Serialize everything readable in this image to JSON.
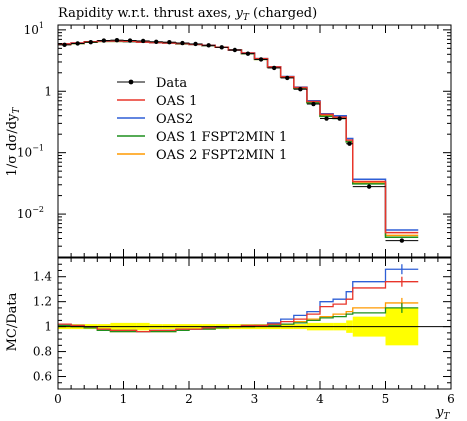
{
  "title": {
    "main": "Rapidity w.r.t. thrust axes, ",
    "var": "y",
    "sub": "T",
    "suffix": " (charged)"
  },
  "ylabel_main": "1/σ dσ/dy",
  "ylabel_main_sub": "T",
  "ylabel_ratio": "MC/Data",
  "xlabel": {
    "var": "y",
    "sub": "T"
  },
  "colors": {
    "data": "#000000",
    "oas1": "#e8352a",
    "oas2": "#2e5fd6",
    "oas1f": "#1f8f1f",
    "oas2f": "#ff9a00",
    "band": "#ffff00"
  },
  "legend": [
    {
      "key": "data",
      "label": "Data"
    },
    {
      "key": "oas1",
      "label": "OAS 1"
    },
    {
      "key": "oas2",
      "label": "OAS2"
    },
    {
      "key": "oas1f",
      "label": "OAS 1 FSPT2MIN 1"
    },
    {
      "key": "oas2f",
      "label": "OAS 2 FSPT2MIN 1"
    }
  ],
  "chart_data": {
    "type": "line",
    "xlim": [
      0,
      6
    ],
    "ylim_main": [
      0.002,
      12
    ],
    "yscale_main": "log",
    "ylim_ratio": [
      0.5,
      1.55
    ],
    "x_ticks": [
      "0",
      "1",
      "2",
      "3",
      "4",
      "5",
      "6"
    ],
    "y_ticks_main": [
      {
        "v": 10,
        "m": "10",
        "e": "1"
      },
      {
        "v": 1,
        "m": "1",
        "e": ""
      },
      {
        "v": 0.1,
        "m": "10",
        "e": "−1"
      },
      {
        "v": 0.01,
        "m": "10",
        "e": "−2"
      }
    ],
    "y_ticks_ratio": [
      "0.6",
      "0.8",
      "1",
      "1.2",
      "1.4"
    ],
    "bin_edges": [
      0,
      0.2,
      0.4,
      0.6,
      0.8,
      1.0,
      1.2,
      1.4,
      1.6,
      1.8,
      2.0,
      2.2,
      2.4,
      2.6,
      2.8,
      3.0,
      3.2,
      3.4,
      3.6,
      3.8,
      4.0,
      4.2,
      4.4,
      4.5,
      5.0,
      5.5,
      6.0
    ],
    "data": [
      5.7,
      6.0,
      6.3,
      6.7,
      6.8,
      6.7,
      6.6,
      6.4,
      6.3,
      6.1,
      5.9,
      5.6,
      5.2,
      4.7,
      4.1,
      3.3,
      2.4,
      1.65,
      1.08,
      0.62,
      0.36,
      0.36,
      0.14,
      0.028,
      0.0037
    ],
    "series": [
      {
        "key": "oas1",
        "values": [
          5.9,
          6.1,
          6.4,
          6.6,
          6.6,
          6.5,
          6.3,
          6.2,
          6.1,
          6.0,
          5.8,
          5.6,
          5.2,
          4.7,
          4.2,
          3.4,
          2.5,
          1.72,
          1.15,
          0.68,
          0.42,
          0.38,
          0.16,
          0.034,
          0.005
        ],
        "ratio": [
          1.02,
          1.01,
          1.0,
          0.98,
          0.97,
          0.97,
          0.96,
          0.97,
          0.97,
          0.98,
          0.98,
          0.99,
          1.0,
          1.0,
          1.01,
          1.01,
          1.02,
          1.04,
          1.06,
          1.1,
          1.16,
          1.18,
          1.22,
          1.31,
          1.36
        ]
      },
      {
        "key": "oas2",
        "values": [
          5.9,
          6.1,
          6.4,
          6.6,
          6.6,
          6.5,
          6.3,
          6.2,
          6.1,
          6.0,
          5.8,
          5.6,
          5.2,
          4.7,
          4.2,
          3.4,
          2.5,
          1.74,
          1.17,
          0.7,
          0.43,
          0.4,
          0.17,
          0.037,
          0.0055
        ],
        "ratio": [
          1.02,
          1.01,
          1.0,
          0.98,
          0.97,
          0.97,
          0.96,
          0.97,
          0.97,
          0.98,
          0.98,
          0.99,
          1.0,
          1.0,
          1.01,
          1.01,
          1.03,
          1.06,
          1.09,
          1.12,
          1.2,
          1.22,
          1.28,
          1.36,
          1.46
        ]
      },
      {
        "key": "oas1f",
        "values": [
          5.8,
          6.0,
          6.3,
          6.5,
          6.5,
          6.4,
          6.3,
          6.2,
          6.1,
          5.9,
          5.8,
          5.5,
          5.2,
          4.7,
          4.1,
          3.3,
          2.45,
          1.68,
          1.11,
          0.65,
          0.39,
          0.36,
          0.15,
          0.031,
          0.0042
        ],
        "ratio": [
          1.01,
          1.0,
          0.99,
          0.97,
          0.96,
          0.96,
          0.96,
          0.96,
          0.96,
          0.97,
          0.98,
          0.98,
          0.99,
          1.0,
          1.0,
          1.01,
          1.01,
          1.02,
          1.03,
          1.05,
          1.07,
          1.08,
          1.1,
          1.11,
          1.15
        ]
      },
      {
        "key": "oas2f",
        "values": [
          5.8,
          6.0,
          6.3,
          6.5,
          6.5,
          6.4,
          6.3,
          6.2,
          6.1,
          5.9,
          5.8,
          5.5,
          5.2,
          4.7,
          4.1,
          3.3,
          2.45,
          1.69,
          1.12,
          0.66,
          0.4,
          0.37,
          0.15,
          0.032,
          0.0045
        ],
        "ratio": [
          1.01,
          1.0,
          0.99,
          0.97,
          0.96,
          0.96,
          0.96,
          0.96,
          0.96,
          0.97,
          0.98,
          0.98,
          0.99,
          1.0,
          1.0,
          1.01,
          1.01,
          1.02,
          1.04,
          1.06,
          1.08,
          1.1,
          1.12,
          1.15,
          1.19
        ]
      }
    ],
    "band": [
      0.02,
      0.02,
      0.02,
      0.02,
      0.03,
      0.03,
      0.03,
      0.02,
      0.02,
      0.02,
      0.02,
      0.02,
      0.02,
      0.02,
      0.02,
      0.02,
      0.02,
      0.02,
      0.02,
      0.03,
      0.03,
      0.03,
      0.05,
      0.08,
      0.15
    ]
  }
}
